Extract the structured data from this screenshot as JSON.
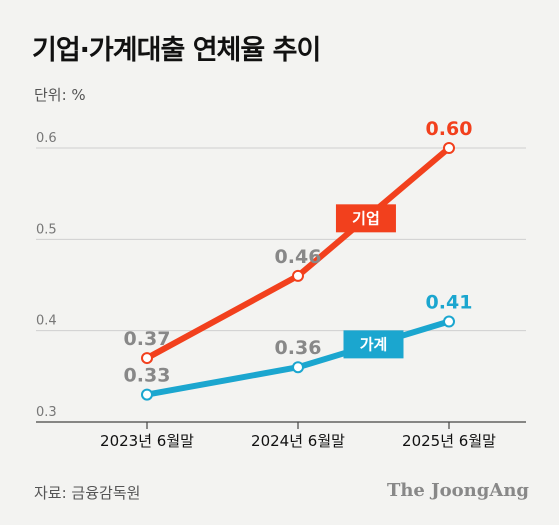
{
  "header": {
    "title": "기업·가계대출 연체율 추이",
    "unit": "단위: %"
  },
  "footer": {
    "source": "자료: 금융감독원",
    "logo": "The JoongAng"
  },
  "colors": {
    "corporate": "#f2401d",
    "household": "#1ba6cf",
    "grid": "#cfcfcf",
    "axis": "#444444",
    "label_gray": "#888888"
  },
  "chart_data": {
    "type": "line",
    "title": "기업·가계대출 연체율 추이",
    "ylabel": "단위: %",
    "xlabel": "",
    "categories": [
      "2023년 6월말",
      "2024년 6월말",
      "2025년 6월말"
    ],
    "ylim": [
      0.3,
      0.6
    ],
    "yticks": [
      "0.3",
      "0.4",
      "0.5",
      "0.6"
    ],
    "grid": true,
    "series": [
      {
        "name": "기업",
        "key": "corporate",
        "values": [
          0.37,
          0.46,
          0.6
        ],
        "labels": [
          "0.37",
          "0.46",
          "0.60"
        ]
      },
      {
        "name": "가계",
        "key": "household",
        "values": [
          0.33,
          0.36,
          0.41
        ],
        "labels": [
          "0.33",
          "0.36",
          "0.41"
        ]
      }
    ]
  }
}
